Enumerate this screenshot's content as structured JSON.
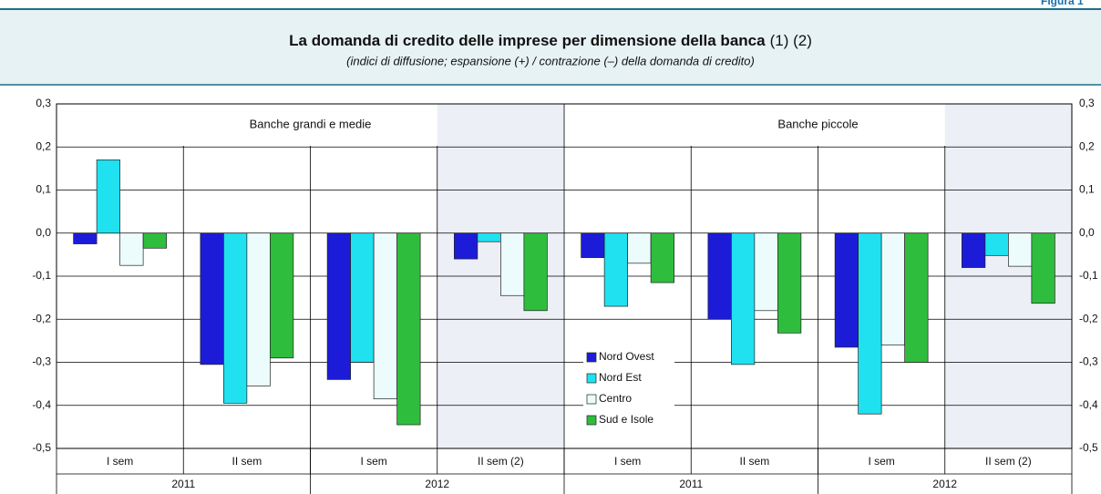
{
  "chart_data": {
    "type": "bar",
    "figure_label": "Figura 1",
    "title": "La domanda di credito delle imprese per dimensione della banca",
    "title_notes": "(1) (2)",
    "subtitle": "(indici di diffusione; espansione (+) / contrazione (–) della domanda di credito)",
    "panels": [
      "Banche grandi e medie",
      "Banche piccole"
    ],
    "categories": [
      "I  sem",
      "II sem",
      "I  sem",
      "II sem (2)",
      "I  sem",
      "II sem",
      "I sem",
      "II sem (2)"
    ],
    "years": [
      "2011",
      "2012",
      "2011",
      "2012"
    ],
    "series": [
      {
        "name": "Nord Ovest",
        "color": "#1c1cd8",
        "values": [
          -0.025,
          -0.305,
          -0.34,
          -0.06,
          -0.057,
          -0.2,
          -0.265,
          -0.08
        ]
      },
      {
        "name": "Nord Est",
        "color": "#1fe1f0",
        "values": [
          0.17,
          -0.395,
          -0.3,
          -0.02,
          -0.17,
          -0.305,
          -0.42,
          -0.052
        ]
      },
      {
        "name": "Centro",
        "color": "#ecfcfc",
        "values": [
          -0.075,
          -0.355,
          -0.385,
          -0.145,
          -0.07,
          -0.18,
          -0.26,
          -0.077
        ]
      },
      {
        "name": "Sud e Isole",
        "color": "#2fbd3d",
        "values": [
          -0.035,
          -0.29,
          -0.445,
          -0.18,
          -0.115,
          -0.232,
          -0.3,
          -0.163
        ]
      }
    ],
    "ylim": [
      -0.5,
      0.3
    ],
    "yticks": [
      {
        "value": -0.5,
        "label": "-0,5"
      },
      {
        "value": -0.4,
        "label": "-0,4"
      },
      {
        "value": -0.3,
        "label": "-0,3"
      },
      {
        "value": -0.2,
        "label": "-0,2"
      },
      {
        "value": -0.1,
        "label": "-0,1"
      },
      {
        "value": 0,
        "label": "0,0"
      },
      {
        "value": 0.1,
        "label": "0,1"
      },
      {
        "value": 0.2,
        "label": "0,2"
      },
      {
        "value": 0.3,
        "label": "0,3"
      }
    ],
    "shaded_categories": [
      3,
      7
    ],
    "grid": true,
    "legend": "center"
  }
}
